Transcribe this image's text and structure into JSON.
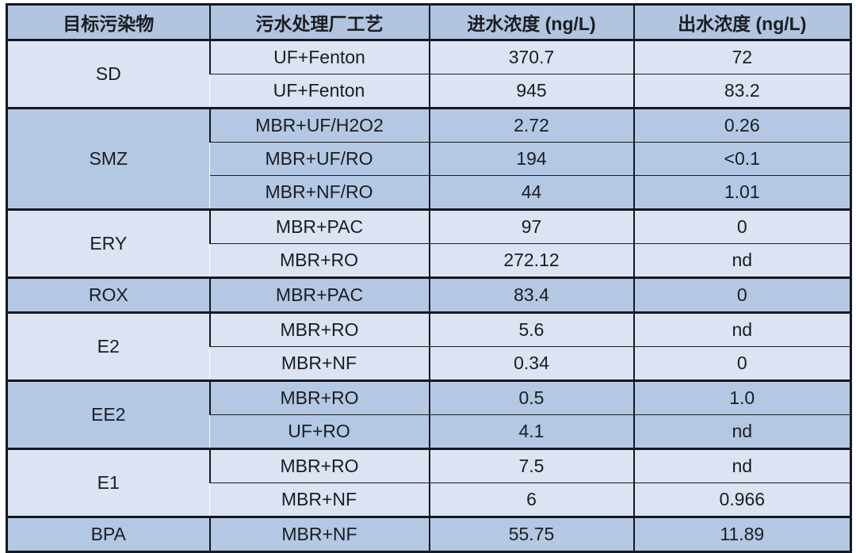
{
  "colors": {
    "header_bg": "#b1c4e0",
    "light_bg": "#dce3f2",
    "medium_bg": "#b4c8e4",
    "border": "#14181f",
    "inner_line": "#1c2026",
    "text": "#1a1d22",
    "page_bg": "#ffffff"
  },
  "table": {
    "headers": [
      "目标污染物",
      "污水处理厂工艺",
      "进水浓度 (ng/L)",
      "出水浓度 (ng/L)"
    ],
    "groups": [
      {
        "pollutant": "SD",
        "shade": "light",
        "rows": [
          [
            "UF+Fenton",
            "370.7",
            "72"
          ],
          [
            "UF+Fenton",
            "945",
            "83.2"
          ]
        ]
      },
      {
        "pollutant": "SMZ",
        "shade": "medium",
        "rows": [
          [
            "MBR+UF/H2O2",
            "2.72",
            "0.26"
          ],
          [
            "MBR+UF/RO",
            "194",
            "<0.1"
          ],
          [
            "MBR+NF/RO",
            "44",
            "1.01"
          ]
        ]
      },
      {
        "pollutant": "ERY",
        "shade": "light",
        "rows": [
          [
            "MBR+PAC",
            "97",
            "0"
          ],
          [
            "MBR+RO",
            "272.12",
            "nd"
          ]
        ]
      },
      {
        "pollutant": "ROX",
        "shade": "medium",
        "rows": [
          [
            "MBR+PAC",
            "83.4",
            "0"
          ]
        ]
      },
      {
        "pollutant": "E2",
        "shade": "light",
        "rows": [
          [
            "MBR+RO",
            "5.6",
            "nd"
          ],
          [
            "MBR+NF",
            "0.34",
            "0"
          ]
        ]
      },
      {
        "pollutant": "EE2",
        "shade": "medium",
        "rows": [
          [
            "MBR+RO",
            "0.5",
            "1.0"
          ],
          [
            "UF+RO",
            "4.1",
            "nd"
          ]
        ]
      },
      {
        "pollutant": "E1",
        "shade": "light",
        "rows": [
          [
            "MBR+RO",
            "7.5",
            "nd"
          ],
          [
            "MBR+NF",
            "6",
            "0.966"
          ]
        ]
      },
      {
        "pollutant": "BPA",
        "shade": "medium",
        "rows": [
          [
            "MBR+NF",
            "55.75",
            "11.89"
          ]
        ]
      }
    ]
  },
  "chart_data": {
    "type": "table",
    "columns": [
      "目标污染物",
      "污水处理厂工艺",
      "进水浓度 (ng/L)",
      "出水浓度 (ng/L)"
    ],
    "rows": [
      [
        "SD",
        "UF+Fenton",
        "370.7",
        "72"
      ],
      [
        "SD",
        "UF+Fenton",
        "945",
        "83.2"
      ],
      [
        "SMZ",
        "MBR+UF/H2O2",
        "2.72",
        "0.26"
      ],
      [
        "SMZ",
        "MBR+UF/RO",
        "194",
        "<0.1"
      ],
      [
        "SMZ",
        "MBR+NF/RO",
        "44",
        "1.01"
      ],
      [
        "ERY",
        "MBR+PAC",
        "97",
        "0"
      ],
      [
        "ERY",
        "MBR+RO",
        "272.12",
        "nd"
      ],
      [
        "ROX",
        "MBR+PAC",
        "83.4",
        "0"
      ],
      [
        "E2",
        "MBR+RO",
        "5.6",
        "nd"
      ],
      [
        "E2",
        "MBR+NF",
        "0.34",
        "0"
      ],
      [
        "EE2",
        "MBR+RO",
        "0.5",
        "1.0"
      ],
      [
        "EE2",
        "UF+RO",
        "4.1",
        "nd"
      ],
      [
        "E1",
        "MBR+RO",
        "7.5",
        "nd"
      ],
      [
        "E1",
        "MBR+NF",
        "6",
        "0.966"
      ],
      [
        "BPA",
        "MBR+NF",
        "55.75",
        "11.89"
      ]
    ]
  }
}
